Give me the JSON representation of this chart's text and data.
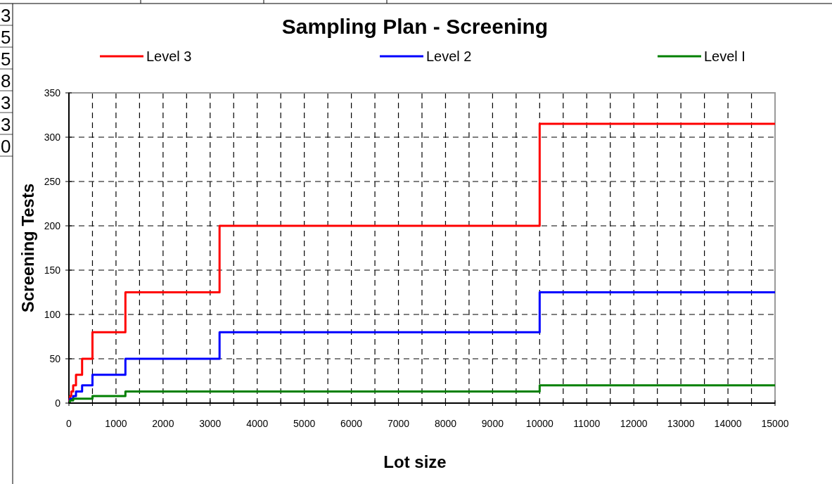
{
  "chart_data": {
    "type": "step",
    "title": "Sampling Plan - Screening",
    "xlabel": "Lot size",
    "ylabel": "Screening Tests",
    "x": [
      0,
      8,
      15,
      25,
      50,
      90,
      150,
      280,
      500,
      1200,
      3200,
      10000,
      15000
    ],
    "series": [
      {
        "name": "Level 3",
        "color": "#ff0000",
        "values": [
          2,
          3,
          5,
          8,
          13,
          20,
          32,
          50,
          80,
          125,
          200,
          315,
          315
        ]
      },
      {
        "name": "Level 2",
        "color": "#0000ff",
        "values": [
          2,
          2,
          3,
          5,
          5,
          8,
          13,
          20,
          32,
          50,
          80,
          125,
          125
        ]
      },
      {
        "name": "Level I",
        "color": "#008000",
        "values": [
          2,
          2,
          2,
          3,
          3,
          5,
          5,
          5,
          8,
          13,
          13,
          20,
          20
        ]
      }
    ],
    "xlim": [
      0,
      15000
    ],
    "ylim": [
      0,
      350
    ],
    "xticks": [
      0,
      {
        "value": 500,
        "label": null
      },
      1000,
      {
        "value": 1500,
        "label": null
      },
      2000,
      {
        "value": 2500,
        "label": null
      },
      3000,
      {
        "value": 3500,
        "label": null
      },
      4000,
      {
        "value": 4500,
        "label": null
      },
      5000,
      {
        "value": 5500,
        "label": null
      },
      6000,
      {
        "value": 6500,
        "label": null
      },
      7000,
      {
        "value": 7500,
        "label": null
      },
      8000,
      {
        "value": 8500,
        "label": null
      },
      9000,
      {
        "value": 9500,
        "label": null
      },
      10000,
      {
        "value": 10500,
        "label": null
      },
      11000,
      {
        "value": 11500,
        "label": null
      },
      12000,
      {
        "value": 12500,
        "label": null
      },
      13000,
      {
        "value": 13500,
        "label": null
      },
      14000,
      {
        "value": 14500,
        "label": null
      },
      15000
    ],
    "yticks": [
      0,
      50,
      100,
      150,
      200,
      250,
      300,
      350
    ],
    "grid": true,
    "legend": "top",
    "line_style": "solid",
    "marker": "none",
    "annotations": [
      "3",
      "5",
      "5",
      "8",
      "3",
      "3",
      "0"
    ]
  }
}
